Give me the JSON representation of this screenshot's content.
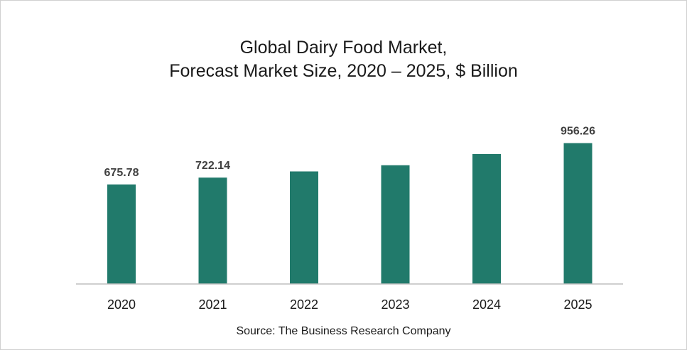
{
  "chart_data": {
    "type": "bar",
    "title": "Global Dairy Food Market,",
    "subtitle": "Forecast Market Size, 2020 – 2025, $ Billion",
    "categories": [
      "2020",
      "2021",
      "2022",
      "2023",
      "2024",
      "2025"
    ],
    "values": [
      675.78,
      722.14,
      764.0,
      806.0,
      882.0,
      956.26
    ],
    "data_labels": [
      "675.78",
      "722.14",
      "",
      "",
      "",
      "956.26"
    ],
    "xlabel": "",
    "ylabel": "",
    "ylim": [
      0,
      1000
    ],
    "grid": false,
    "bar_color": "#217a6b",
    "source": "Source: The Business Research Company"
  }
}
